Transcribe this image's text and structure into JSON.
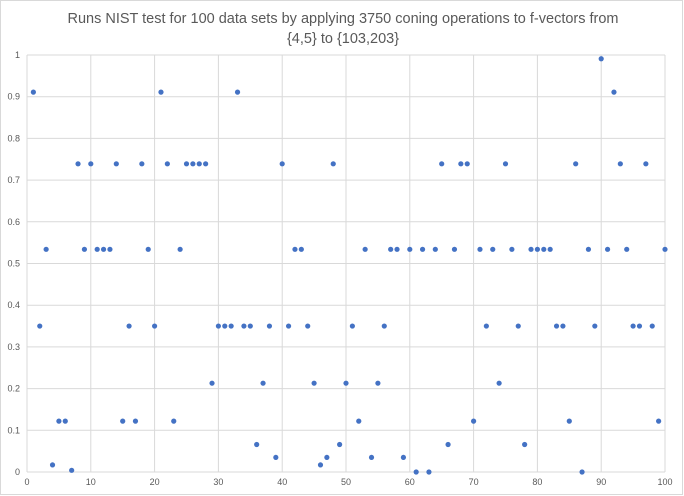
{
  "chart_data": {
    "type": "scatter",
    "title": "Runs NIST test for 100 data sets by applying 3750 coning operations to f-vectors from {4,5} to {103,203}",
    "xlabel": "",
    "ylabel": "",
    "xlim": [
      0,
      100
    ],
    "ylim": [
      0,
      1
    ],
    "xticks": [
      0,
      10,
      20,
      30,
      40,
      50,
      60,
      70,
      80,
      90,
      100
    ],
    "yticks": [
      0,
      0.1,
      0.2,
      0.3,
      0.4,
      0.5,
      0.6,
      0.7,
      0.8,
      0.9,
      1
    ],
    "grid": true,
    "legend": "none",
    "marker_color": "#4472C4",
    "series": [
      {
        "x": [
          1,
          2,
          3,
          4,
          5,
          6,
          7,
          8,
          9,
          10,
          11,
          12,
          13,
          14,
          15,
          16,
          17,
          18,
          19,
          20,
          21,
          22,
          23,
          24,
          25,
          26,
          27,
          28,
          29,
          30,
          31,
          32,
          33,
          34,
          35,
          36,
          37,
          38,
          39,
          40,
          41,
          42,
          43,
          44,
          45,
          46,
          47,
          48,
          49,
          50,
          51,
          52,
          53,
          54,
          55,
          56,
          57,
          58,
          59,
          60,
          61,
          62,
          63,
          64,
          65,
          66,
          67,
          68,
          69,
          70,
          71,
          72,
          73,
          74,
          75,
          76,
          77,
          78,
          79,
          80,
          81,
          82,
          83,
          84,
          85,
          86,
          87,
          88,
          89,
          90,
          91,
          92,
          93,
          94,
          95,
          96,
          97,
          98,
          99,
          100
        ],
        "y": [
          0.911,
          0.35,
          0.534,
          0.017,
          0.122,
          0.122,
          0.004,
          0.739,
          0.534,
          0.739,
          0.534,
          0.534,
          0.534,
          0.739,
          0.122,
          0.35,
          0.122,
          0.739,
          0.534,
          0.35,
          0.911,
          0.739,
          0.122,
          0.534,
          0.739,
          0.739,
          0.739,
          0.739,
          0.213,
          0.35,
          0.35,
          0.35,
          0.911,
          0.35,
          0.35,
          0.066,
          0.213,
          0.35,
          0.035,
          0.739,
          0.35,
          0.534,
          0.534,
          0.35,
          0.213,
          0.017,
          0.035,
          0.739,
          0.066,
          0.213,
          0.35,
          0.122,
          0.534,
          0.035,
          0.213,
          0.35,
          0.534,
          0.534,
          0.035,
          0.534,
          0.0,
          0.534,
          0.0,
          0.534,
          0.739,
          0.066,
          0.534,
          0.739,
          0.739,
          0.122,
          0.534,
          0.35,
          0.534,
          0.213,
          0.739,
          0.534,
          0.35,
          0.066,
          0.534,
          0.534,
          0.534,
          0.534,
          0.35,
          0.35,
          0.122,
          0.739,
          0.0,
          0.534,
          0.35,
          0.991,
          0.534,
          0.911,
          0.739,
          0.534,
          0.35,
          0.35,
          0.739,
          0.35,
          0.122,
          0.534
        ]
      }
    ]
  }
}
